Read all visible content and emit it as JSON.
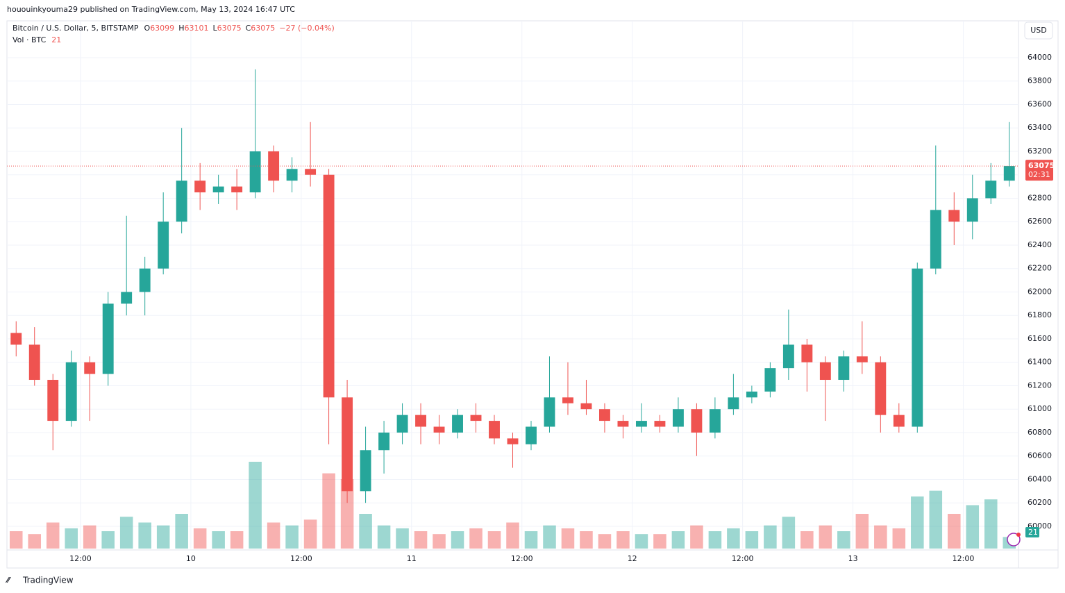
{
  "header": {
    "published": "hououinkyouma29 published on TradingView.com, May 13, 2024 16:47 UTC",
    "footer": "TradingView",
    "currency": "USD"
  },
  "chart_data": {
    "type": "candlestick",
    "title": "Bitcoin / U.S. Dollar, 5, BITSTAMP",
    "legend": {
      "open_label": "O",
      "open": "63099",
      "high_label": "H",
      "high": "63101",
      "low_label": "L",
      "low": "63075",
      "close_label": "C",
      "close": "63075",
      "change": "−27 (−0.04%)"
    },
    "volume_title": "Vol · BTC",
    "volume_last": 21,
    "last_price": 63075,
    "countdown": "02:31",
    "up_color": "#26a69a",
    "down_color": "#ef5350",
    "open": [
      61650,
      61550,
      61250,
      60900,
      61400,
      61300,
      61900,
      62000,
      62200,
      62600,
      62950,
      62850,
      62900,
      62850,
      63200,
      62950,
      63050,
      63000,
      61100,
      60300,
      60650,
      60800,
      60950,
      60850,
      60800,
      60950,
      60900,
      60750,
      60700,
      60850,
      61100,
      61050,
      61000,
      60900,
      60850,
      60900,
      60850,
      61000,
      60800,
      61000,
      61100,
      61150,
      61350,
      61550,
      61400,
      61250,
      61450,
      61400,
      60950,
      60850,
      62200,
      62700,
      62600,
      62800,
      62950
    ],
    "high": [
      61750,
      61700,
      61300,
      61500,
      61450,
      62000,
      62650,
      62300,
      62850,
      63400,
      63100,
      63000,
      63050,
      63900,
      63250,
      63150,
      63450,
      63050,
      61250,
      60850,
      60900,
      61050,
      61050,
      60950,
      61000,
      61050,
      60950,
      60800,
      60900,
      61450,
      61400,
      61250,
      61050,
      60950,
      61050,
      60950,
      61100,
      61050,
      61100,
      61300,
      61200,
      61400,
      61850,
      61600,
      61450,
      61500,
      61750,
      61450,
      61050,
      62250,
      63250,
      62850,
      63000,
      63100,
      63450
    ],
    "low": [
      61450,
      61200,
      60650,
      60850,
      60900,
      61200,
      61800,
      61800,
      62150,
      62500,
      62700,
      62750,
      62700,
      62800,
      62850,
      62850,
      62900,
      60700,
      60200,
      60200,
      60450,
      60700,
      60700,
      60700,
      60750,
      60800,
      60700,
      60500,
      60650,
      60800,
      60950,
      60950,
      60800,
      60750,
      60800,
      60800,
      60800,
      60600,
      60750,
      60950,
      61050,
      61100,
      61250,
      61150,
      60900,
      61150,
      61300,
      60800,
      60800,
      60800,
      62150,
      62400,
      62450,
      62750,
      62900
    ],
    "close": [
      61550,
      61250,
      60900,
      61400,
      61300,
      61900,
      62000,
      62200,
      62600,
      62950,
      62850,
      62900,
      62850,
      63200,
      62950,
      63050,
      63000,
      61100,
      60300,
      60650,
      60800,
      60950,
      60850,
      60800,
      60950,
      60900,
      60750,
      60700,
      60850,
      61100,
      61050,
      61000,
      60900,
      60850,
      60900,
      60850,
      61000,
      60800,
      61000,
      61100,
      61150,
      61350,
      61550,
      61400,
      61250,
      61450,
      61400,
      60950,
      60850,
      62200,
      62700,
      62600,
      62800,
      62950,
      63075
    ],
    "volume": [
      60,
      50,
      90,
      70,
      80,
      60,
      110,
      90,
      80,
      120,
      70,
      60,
      60,
      300,
      90,
      80,
      100,
      260,
      240,
      120,
      80,
      70,
      60,
      50,
      60,
      70,
      60,
      90,
      60,
      80,
      70,
      60,
      50,
      60,
      50,
      50,
      60,
      80,
      60,
      70,
      60,
      80,
      110,
      60,
      80,
      60,
      120,
      80,
      70,
      180,
      200,
      120,
      150,
      170,
      40
    ],
    "ylim": [
      59810,
      64314
    ],
    "yticks": [
      60000,
      60200,
      60400,
      60600,
      60800,
      61000,
      61200,
      61400,
      61600,
      61800,
      62000,
      62200,
      62400,
      62600,
      62800,
      63000,
      63200,
      63400,
      63600,
      63800,
      64000
    ],
    "xlim": [
      0,
      55
    ],
    "xticks": [
      {
        "value": 4,
        "label": "12:00"
      },
      {
        "value": 10,
        "label": "10"
      },
      {
        "value": 16,
        "label": "12:00"
      },
      {
        "value": 22,
        "label": "11"
      },
      {
        "value": 28,
        "label": "12:00"
      },
      {
        "value": 34,
        "label": "12"
      },
      {
        "value": 40,
        "label": "12:00"
      },
      {
        "value": 46,
        "label": "13"
      },
      {
        "value": 52,
        "label": "12:00"
      }
    ],
    "vlim": [
      0,
      600
    ],
    "grid": true
  }
}
